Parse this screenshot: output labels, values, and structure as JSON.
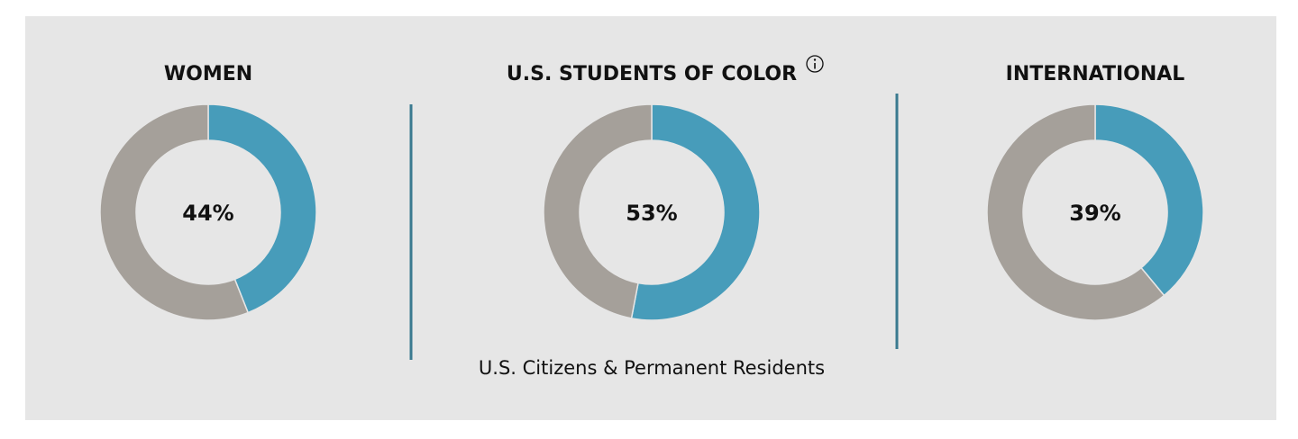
{
  "chart_data": [
    {
      "type": "pie",
      "donut": true,
      "title": "WOMEN",
      "categories": [
        null,
        null
      ],
      "values": [
        44,
        56
      ],
      "value_labels": [
        "44%",
        null
      ],
      "colors": [
        "#479cba",
        "#a5a09a"
      ]
    },
    {
      "type": "pie",
      "donut": true,
      "title": "U.S. STUDENTS OF COLOR",
      "subtitle": "U.S. Citizens & Permanent Residents",
      "categories": [
        null,
        null
      ],
      "values": [
        53,
        47
      ],
      "value_labels": [
        "53%",
        null
      ],
      "colors": [
        "#479cba",
        "#a5a09a"
      ]
    },
    {
      "type": "pie",
      "donut": true,
      "title": "INTERNATIONAL",
      "categories": [
        null,
        null
      ],
      "values": [
        39,
        61
      ],
      "value_labels": [
        "39%",
        null
      ],
      "colors": [
        "#479cba",
        "#a5a09a"
      ]
    }
  ]
}
